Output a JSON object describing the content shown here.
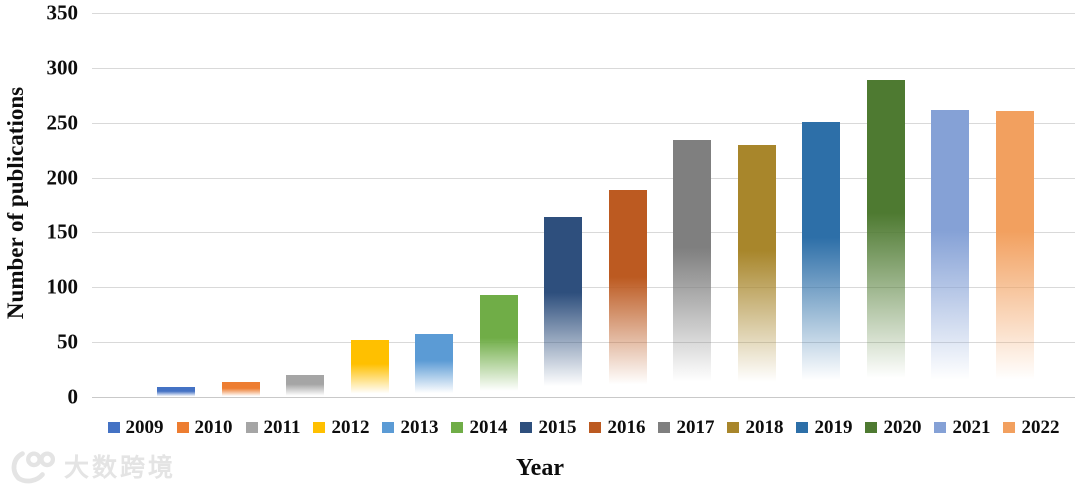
{
  "watermark": {
    "text": "大数跨境",
    "logo": "100-swoosh-icon",
    "color": "#e4e4e4"
  },
  "chart_data": {
    "type": "bar",
    "title": "",
    "xlabel": "Year",
    "ylabel": "Number of publications",
    "ylim": [
      0,
      350
    ],
    "yticks": [
      0,
      50,
      100,
      150,
      200,
      250,
      300,
      350
    ],
    "grid": true,
    "gridline_color": "#d9d9d9",
    "legend_position": "bottom",
    "bar_style": "vertical gradient fading to white at base",
    "categories": [
      "2009",
      "2010",
      "2011",
      "2012",
      "2013",
      "2014",
      "2015",
      "2016",
      "2017",
      "2018",
      "2019",
      "2020",
      "2021",
      "2022"
    ],
    "values": [
      9,
      14,
      20,
      52,
      57,
      93,
      164,
      189,
      234,
      230,
      251,
      289,
      262,
      261
    ],
    "colors": [
      "#4472C4",
      "#ED7D31",
      "#A5A5A5",
      "#FFC000",
      "#5B9BD5",
      "#70AD47",
      "#2E4F7D",
      "#BC5A21",
      "#7F7F7F",
      "#A8862B",
      "#2D6FA8",
      "#4E7A31",
      "#85A1D6",
      "#F2A05F"
    ]
  }
}
